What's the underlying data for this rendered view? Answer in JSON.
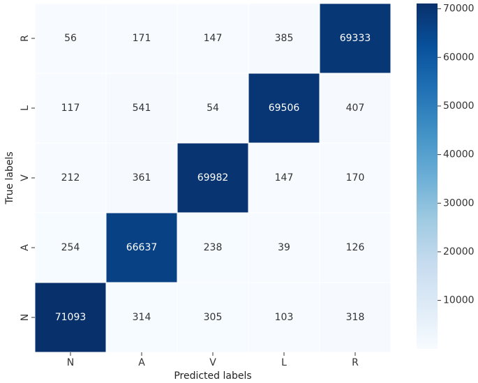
{
  "chart_data": {
    "type": "heatmap",
    "x_categories": [
      "N",
      "A",
      "V",
      "L",
      "R"
    ],
    "y_categories": [
      "R",
      "L",
      "V",
      "A",
      "N"
    ],
    "values": [
      [
        56,
        171,
        147,
        385,
        69333
      ],
      [
        117,
        541,
        54,
        69506,
        407
      ],
      [
        212,
        361,
        69982,
        147,
        170
      ],
      [
        254,
        66637,
        238,
        39,
        126
      ],
      [
        71093,
        314,
        305,
        103,
        318
      ]
    ],
    "xlabel": "Predicted labels",
    "ylabel": "True labels",
    "zlim": [
      39,
      71093
    ],
    "cticks": [
      10000,
      20000,
      30000,
      40000,
      50000,
      60000,
      70000
    ],
    "colormap": [
      "#f7fbff",
      "#deebf7",
      "#c6dbef",
      "#9ecae1",
      "#6baed6",
      "#4292c6",
      "#2171b5",
      "#08519c",
      "#08306b"
    ]
  }
}
